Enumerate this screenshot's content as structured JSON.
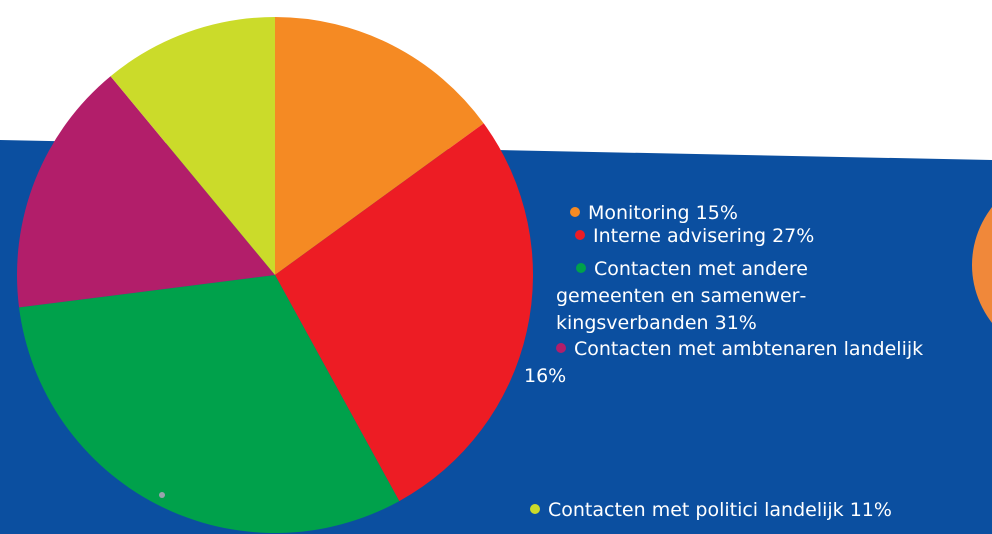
{
  "chart_data": {
    "type": "pie",
    "categories": [
      "Monitoring",
      "Interne advisering",
      "Contacten met andere gemeenten en samenwer­kingsverbanden",
      "Contacten met ambtenaren landelijk",
      "Contacten met politici landelijk"
    ],
    "values": [
      15,
      27,
      31,
      16,
      11
    ],
    "value_labels": [
      "15%",
      "27%",
      "31%",
      "16%",
      "11%"
    ],
    "colors": [
      "#f58a23",
      "#ed1c24",
      "#00a14b",
      "#b21e6a",
      "#cbdb2a"
    ]
  }
}
